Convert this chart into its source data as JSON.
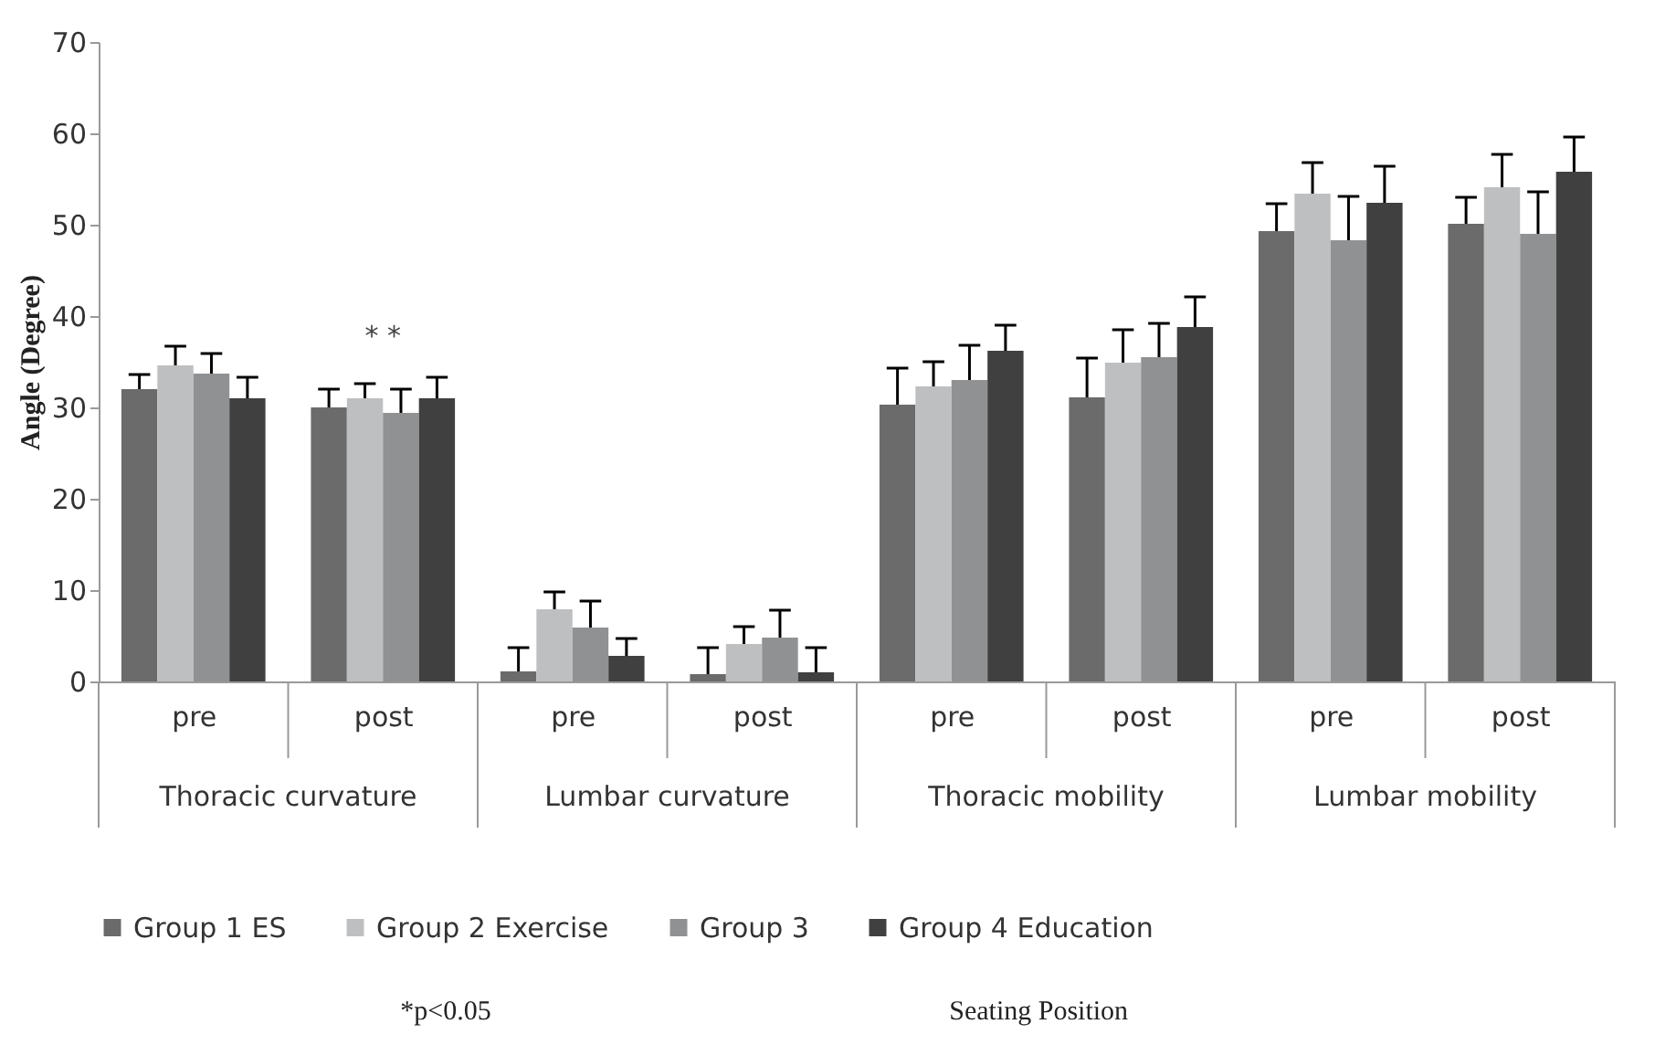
{
  "chart_data": {
    "type": "bar",
    "ylabel": "Angle (Degree)",
    "categories": [
      "pre",
      "post",
      "pre",
      "post",
      "pre",
      "post",
      "pre",
      "post"
    ],
    "series": [
      {
        "name": "Group 1 ES",
        "color": "#6b6b6b",
        "values": [
          32.0,
          30.0,
          1.1,
          0.8,
          30.3,
          31.1,
          49.3,
          50.1
        ],
        "errors": [
          [
            32.0,
            33.6
          ],
          [
            30.0,
            32.0
          ],
          [
            1.1,
            3.7
          ],
          [
            0.8,
            3.7
          ],
          [
            30.3,
            34.3
          ],
          [
            31.1,
            35.4
          ],
          [
            49.3,
            52.3
          ],
          [
            50.1,
            53.0
          ]
        ]
      },
      {
        "name": "Group 2 Exercise",
        "color": "#bdbfc1",
        "values": [
          34.6,
          31.0,
          7.9,
          4.1,
          32.3,
          34.9,
          53.4,
          54.1
        ],
        "errors": [
          [
            34.6,
            36.7
          ],
          [
            31.0,
            32.6
          ],
          [
            7.9,
            9.8
          ],
          [
            4.1,
            6.0
          ],
          [
            32.3,
            35.0
          ],
          [
            34.9,
            38.5
          ],
          [
            53.4,
            56.8
          ],
          [
            54.1,
            57.7
          ]
        ]
      },
      {
        "name": "Group 3",
        "color": "#8f9193",
        "values": [
          33.7,
          29.4,
          5.9,
          4.8,
          33.0,
          35.5,
          48.3,
          49.0
        ],
        "errors": [
          [
            33.7,
            35.9
          ],
          [
            29.4,
            32.0
          ],
          [
            5.9,
            8.8
          ],
          [
            4.8,
            7.8
          ],
          [
            33.0,
            36.8
          ],
          [
            35.5,
            39.2
          ],
          [
            48.3,
            53.1
          ],
          [
            49.0,
            53.6
          ]
        ]
      },
      {
        "name": "Group 4 Education",
        "color": "#404040",
        "values": [
          31.0,
          31.0,
          2.8,
          1.0,
          36.2,
          38.8,
          52.4,
          55.8
        ],
        "errors": [
          [
            31.0,
            33.3
          ],
          [
            31.0,
            33.3
          ],
          [
            2.8,
            4.7
          ],
          [
            1.0,
            3.7
          ],
          [
            36.2,
            39.0
          ],
          [
            38.8,
            42.1
          ],
          [
            52.4,
            56.4
          ],
          [
            55.8,
            59.6
          ]
        ]
      }
    ],
    "ylim": [
      0,
      70
    ],
    "yticks": [
      0,
      10,
      20,
      30,
      40,
      50,
      60,
      70
    ],
    "grid": false,
    "legend": "bottom",
    "annotations": [
      "Thoracic curvature",
      "Lumbar curvature",
      "Thoracic mobility",
      "Lumbar mobility",
      "*p<0.05",
      "Seating Position",
      "* *"
    ]
  }
}
